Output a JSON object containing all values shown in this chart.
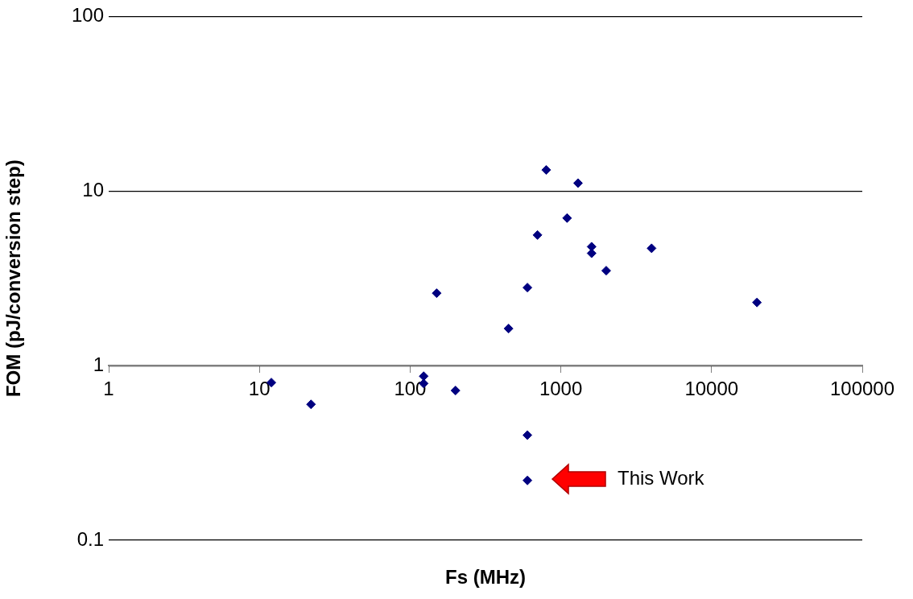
{
  "chart_data": {
    "type": "scatter",
    "xlabel": "Fs (MHz)",
    "ylabel": "FOM (pJ/conversion step)",
    "log": "xy",
    "grid": "y",
    "legend": false,
    "marker": "diamond",
    "xlim": [
      1,
      100000
    ],
    "xticks": [
      1,
      10,
      100,
      1000,
      10000,
      100000
    ],
    "ylim": [
      0.1,
      100
    ],
    "yticks": [
      0.1,
      1,
      10,
      100
    ],
    "series": [
      {
        "color": "#000080",
        "x": [
          12,
          22,
          123,
          123,
          200,
          150,
          450,
          600,
          700,
          1100,
          800,
          1300,
          1600,
          1600,
          2000,
          4000,
          20000,
          600,
          600
        ],
        "values": [
          0.8,
          0.6,
          0.87,
          0.79,
          0.72,
          2.6,
          1.63,
          2.8,
          5.6,
          7.0,
          13.2,
          11.1,
          4.8,
          4.4,
          3.5,
          4.7,
          2.3,
          0.4,
          0.22
        ]
      }
    ],
    "annotations": [
      "This Work"
    ]
  }
}
